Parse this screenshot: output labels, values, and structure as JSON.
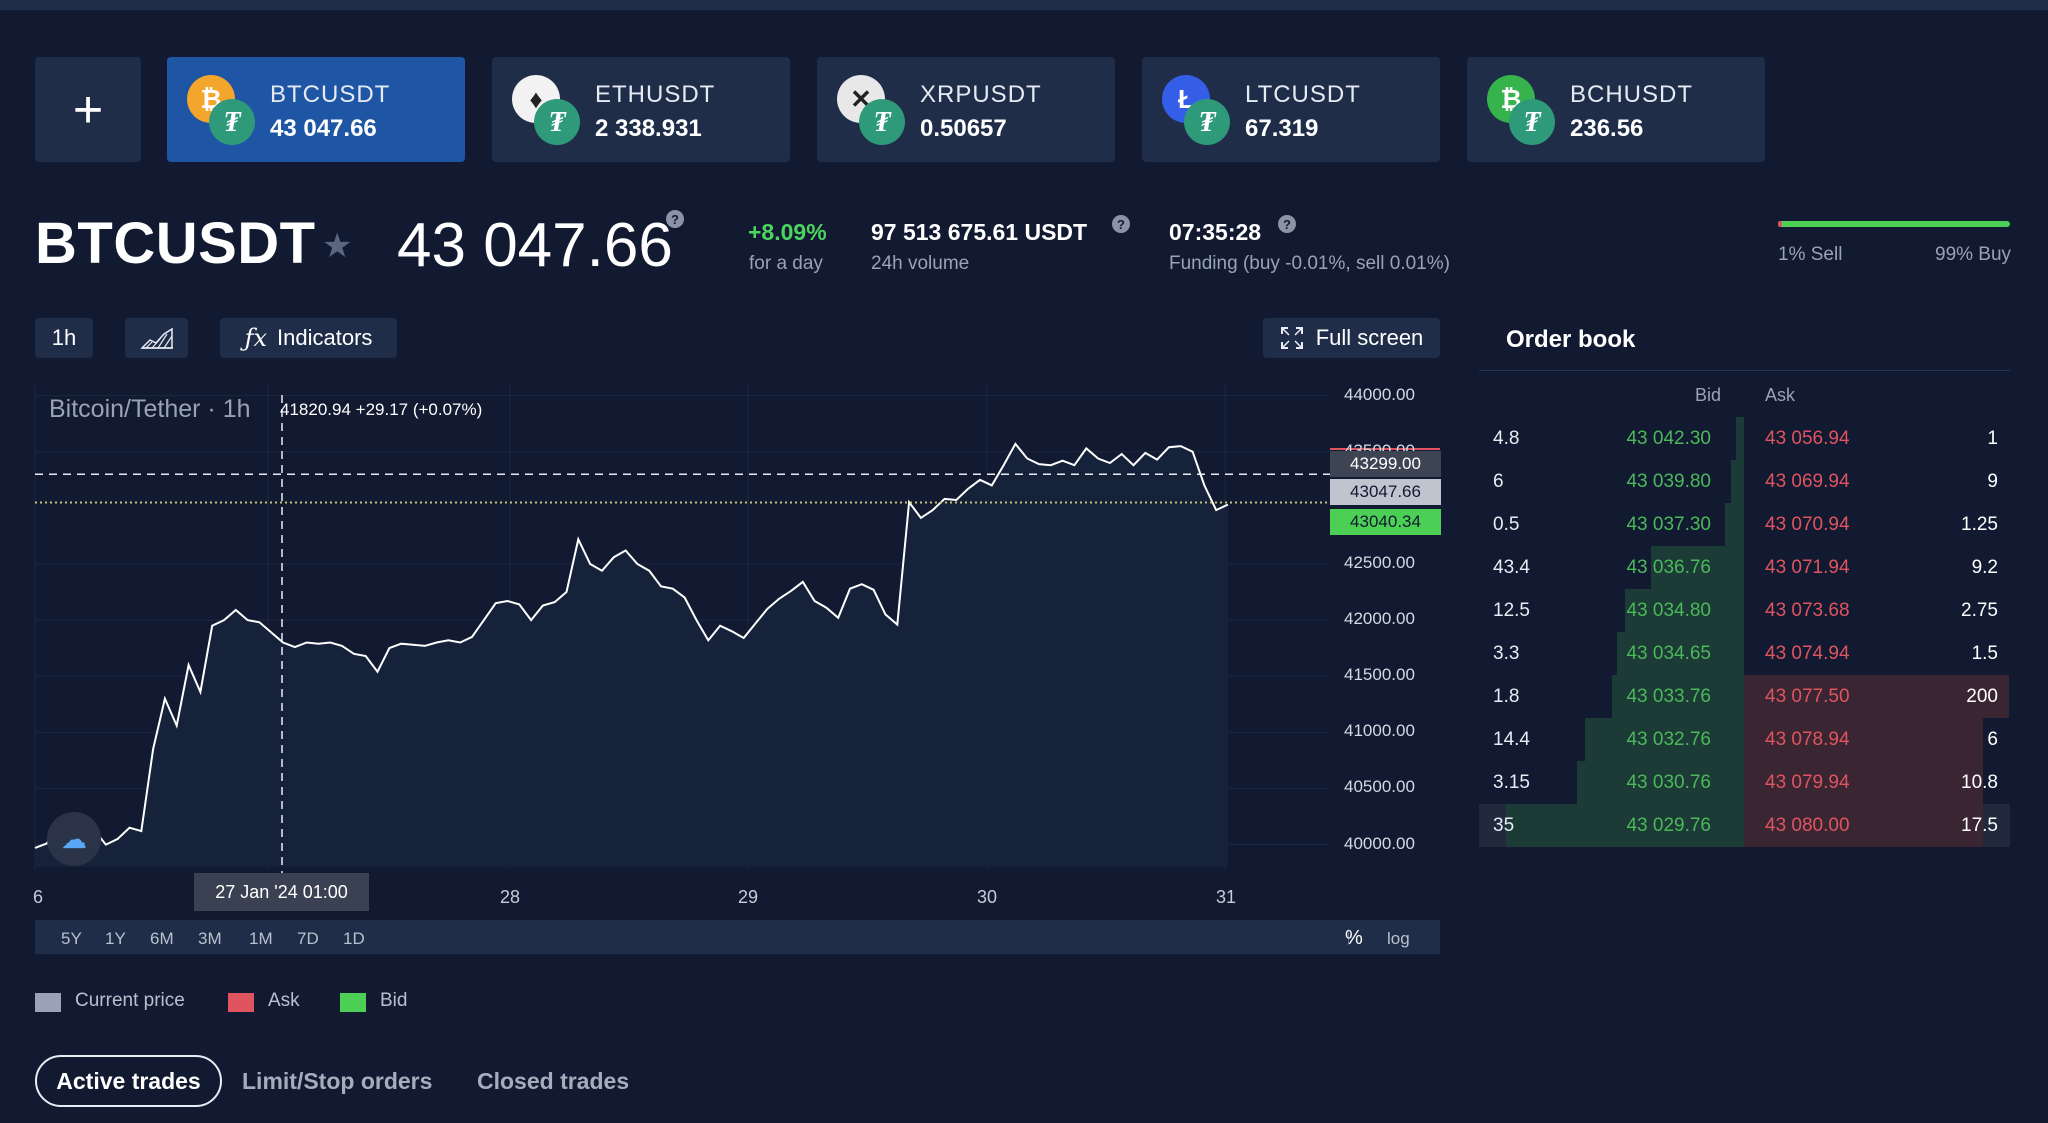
{
  "add_label": "+",
  "tickers": [
    {
      "symbol": "BTCUSDT",
      "price": "43 047.66",
      "coin_glyph": "₿",
      "coin_color": "#f4a52c",
      "active": true
    },
    {
      "symbol": "ETHUSDT",
      "price": "2 338.931",
      "coin_glyph": "♦",
      "coin_color": "#f2f2f2",
      "active": false
    },
    {
      "symbol": "XRPUSDT",
      "price": "0.50657",
      "coin_glyph": "✕",
      "coin_color": "#e8e8e8",
      "active": false
    },
    {
      "symbol": "LTCUSDT",
      "price": "67.319",
      "coin_glyph": "Ł",
      "coin_color": "#345ee8",
      "active": false
    },
    {
      "symbol": "BCHUSDT",
      "price": "236.56",
      "coin_glyph": "₿",
      "coin_color": "#36b34c",
      "active": false
    }
  ],
  "tether_glyph": "₮",
  "header": {
    "pair": "BTCUSDT",
    "price": "43 047.66",
    "change": "+8.09%",
    "change_label": "for a day",
    "volume": "97 513 675.61 USDT",
    "volume_label": "24h volume",
    "funding_time": "07:35:28",
    "funding_label": "Funding (buy -0.01%, sell 0.01%)",
    "help_glyph": "?"
  },
  "ratio": {
    "sell_label": "1% Sell",
    "buy_label": "99% Buy",
    "sell_fraction": 0.01
  },
  "toolbar": {
    "interval": "1h",
    "indicators": "Indicators",
    "fullscreen": "Full screen"
  },
  "chart_data": {
    "type": "line",
    "title": "Bitcoin/Tether",
    "interval": "1h",
    "crosshair_value": "41820.94",
    "crosshair_change": "+29.17 (+0.07%)",
    "crosshair_date": "27 Jan '24   01:00",
    "x_ticks": [
      "6",
      "28",
      "29",
      "30",
      "31"
    ],
    "y_ticks": [
      "44000.00",
      "43500.00",
      "42500.00",
      "42000.00",
      "41500.00",
      "41000.00",
      "40500.00",
      "40000.00"
    ],
    "ylim": [
      39800,
      44050
    ],
    "price_labels": {
      "crosshair": "43299.00",
      "current": "43047.66",
      "bid": "43040.34"
    },
    "values": [
      39970,
      40010,
      40180,
      40060,
      40150,
      40130,
      40000,
      40050,
      40150,
      40120,
      40850,
      41300,
      41060,
      41600,
      41360,
      41950,
      42000,
      42090,
      42000,
      41980,
      41890,
      41800,
      41760,
      41800,
      41790,
      41800,
      41770,
      41700,
      41680,
      41540,
      41750,
      41790,
      41780,
      41770,
      41800,
      41820,
      41800,
      41850,
      42000,
      42150,
      42170,
      42140,
      42000,
      42130,
      42160,
      42250,
      42720,
      42500,
      42440,
      42560,
      42620,
      42500,
      42440,
      42300,
      42280,
      42200,
      42000,
      41820,
      41950,
      41900,
      41840,
      41970,
      42100,
      42190,
      42260,
      42340,
      42170,
      42110,
      42020,
      42280,
      42320,
      42270,
      42050,
      41960,
      43050,
      42910,
      42980,
      43080,
      43070,
      43170,
      43250,
      43200,
      43380,
      43570,
      43440,
      43390,
      43380,
      43420,
      43380,
      43530,
      43440,
      43400,
      43480,
      43380,
      43490,
      43430,
      43540,
      43550,
      43500,
      43200,
      42980,
      43030
    ]
  },
  "ranges": [
    "5Y",
    "1Y",
    "6M",
    "3M",
    "1M",
    "7D",
    "1D"
  ],
  "range_right": {
    "percent": "%",
    "log": "log"
  },
  "legend": [
    {
      "label": "Current price",
      "color": "#9aa3b5"
    },
    {
      "label": "Ask",
      "color": "#e0545f"
    },
    {
      "label": "Bid",
      "color": "#4ccf55"
    }
  ],
  "trade_tabs": [
    "Active trades",
    "Limit/Stop orders",
    "Closed trades"
  ],
  "order_book": {
    "title": "Order book",
    "bid_header": "Bid",
    "ask_header": "Ask",
    "rows": [
      {
        "size": "4.8",
        "bid": "43 042.30",
        "ask": "43 056.94",
        "ask_size": "1",
        "bid_depth": 0.03,
        "ask_depth": 0.0
      },
      {
        "size": "6",
        "bid": "43 039.80",
        "ask": "43 069.94",
        "ask_size": "9",
        "bid_depth": 0.05,
        "ask_depth": 0.0
      },
      {
        "size": "0.5",
        "bid": "43 037.30",
        "ask": "43 070.94",
        "ask_size": "1.25",
        "bid_depth": 0.07,
        "ask_depth": 0.0
      },
      {
        "size": "43.4",
        "bid": "43 036.76",
        "ask": "43 071.94",
        "ask_size": "9.2",
        "bid_depth": 0.35,
        "ask_depth": 0.0
      },
      {
        "size": "12.5",
        "bid": "43 034.80",
        "ask": "43 073.68",
        "ask_size": "2.75",
        "bid_depth": 0.45,
        "ask_depth": 0.0
      },
      {
        "size": "3.3",
        "bid": "43 034.65",
        "ask": "43 074.94",
        "ask_size": "1.5",
        "bid_depth": 0.48,
        "ask_depth": 0.0
      },
      {
        "size": "1.8",
        "bid": "43 033.76",
        "ask": "43 077.50",
        "ask_size": "200",
        "bid_depth": 0.5,
        "ask_depth": 1.0
      },
      {
        "size": "14.4",
        "bid": "43 032.76",
        "ask": "43 078.94",
        "ask_size": "6",
        "bid_depth": 0.6,
        "ask_depth": 0.9
      },
      {
        "size": "3.15",
        "bid": "43 030.76",
        "ask": "43 079.94",
        "ask_size": "10.8",
        "bid_depth": 0.63,
        "ask_depth": 0.9
      },
      {
        "size": "35",
        "bid": "43 029.76",
        "ask": "43 080.00",
        "ask_size": "17.5",
        "bid_depth": 0.9,
        "ask_depth": 0.9
      }
    ]
  }
}
